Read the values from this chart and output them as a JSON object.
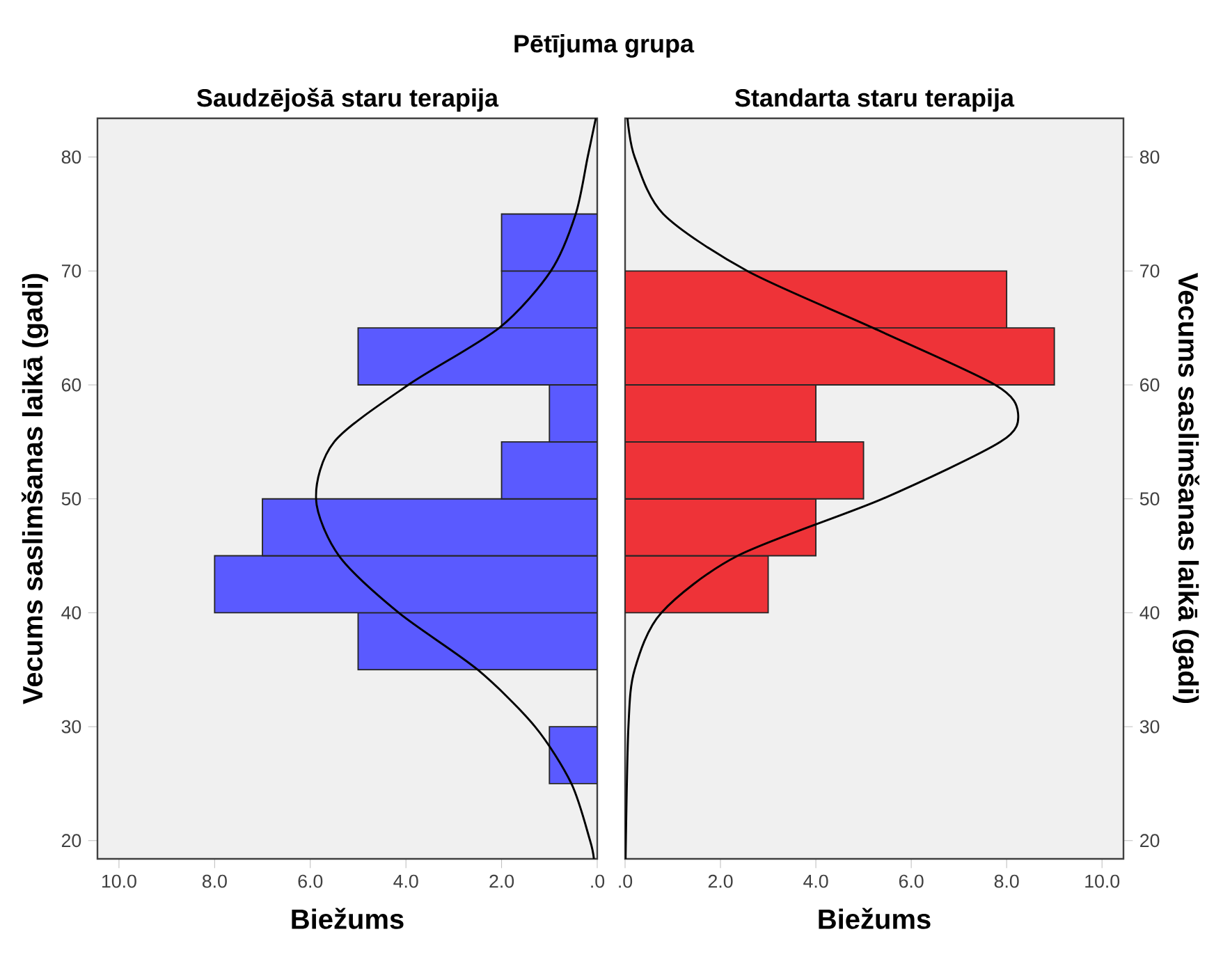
{
  "chart_data": [
    {
      "type": "histogram",
      "orientation": "horizontal",
      "title": "Pētījuma grupa",
      "subtitle": "Saudzējošā staru terapija",
      "xlabel": "Biežums",
      "ylabel": "Vecums saslimšanas laikā (gadi)",
      "bins": [
        25,
        30,
        35,
        40,
        45,
        50,
        55,
        60,
        65,
        70,
        75
      ],
      "values": [
        1,
        0,
        5,
        8,
        7,
        2,
        1,
        5,
        2,
        2
      ],
      "color": "#5a5aff",
      "xlim": [
        10.45,
        0
      ],
      "xticks": [
        {
          "value": 10,
          "label": "10.0"
        },
        {
          "value": 8,
          "label": "8.0"
        },
        {
          "value": 6,
          "label": "6.0"
        },
        {
          "value": 4,
          "label": "4.0"
        },
        {
          "value": 2,
          "label": "2.0"
        },
        {
          "value": 0,
          "label": ".0"
        }
      ],
      "ylim": [
        18.4,
        83.4
      ],
      "yticks": [
        20,
        30,
        40,
        50,
        60,
        70,
        80
      ],
      "series": [
        {
          "type": "line",
          "color": "#000000",
          "x": [
            18.4,
            20,
            25,
            30,
            35,
            40,
            45,
            50,
            55,
            60,
            65,
            70,
            75,
            80,
            83.4
          ],
          "values": [
            0.07,
            0.15,
            0.54,
            1.3,
            2.5,
            4.15,
            5.4,
            5.88,
            5.5,
            3.95,
            2.05,
            0.97,
            0.45,
            0.2,
            0.03
          ]
        }
      ]
    },
    {
      "type": "histogram",
      "orientation": "horizontal",
      "title": "Standarta staru terapija",
      "xlabel": "Biežums",
      "ylabel": "Vecums saslimšanas laikā (gadi)",
      "bins": [
        25,
        30,
        35,
        40,
        45,
        50,
        55,
        60,
        65,
        70,
        75
      ],
      "values": [
        0,
        0,
        0,
        3,
        4,
        5,
        4,
        9,
        8,
        0
      ],
      "color": "#ee3338",
      "xlim": [
        0,
        10.45
      ],
      "xticks": [
        {
          "value": 0,
          "label": ".0"
        },
        {
          "value": 2,
          "label": "2.0"
        },
        {
          "value": 4,
          "label": "4.0"
        },
        {
          "value": 6,
          "label": "6.0"
        },
        {
          "value": 8,
          "label": "8.0"
        },
        {
          "value": 10,
          "label": "10.0"
        }
      ],
      "ylim": [
        18.4,
        83.4
      ],
      "yticks": [
        20,
        30,
        40,
        50,
        60,
        70,
        80
      ],
      "series": [
        {
          "type": "line",
          "color": "#000000",
          "x": [
            18.4,
            30,
            35,
            40,
            45,
            50,
            55,
            57.5,
            60,
            65,
            70,
            75,
            80,
            83.4
          ],
          "values": [
            0.01,
            0.07,
            0.2,
            0.76,
            2.36,
            5.4,
            7.87,
            8.24,
            7.76,
            5.2,
            2.56,
            0.8,
            0.2,
            0.05
          ]
        }
      ]
    }
  ]
}
